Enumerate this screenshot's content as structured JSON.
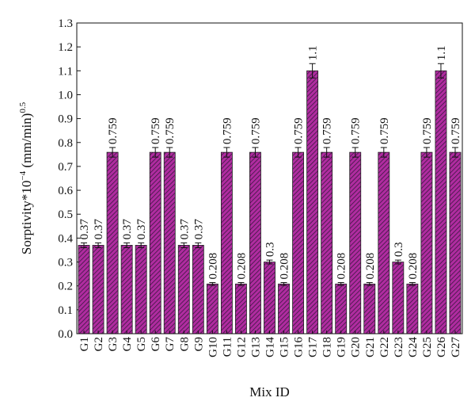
{
  "chart_data": {
    "type": "bar",
    "title": "",
    "xlabel": "Mix ID",
    "ylabel_main": "Sorptivity*10",
    "ylabel_exp1": "−4",
    "ylabel_mid": " (mm/min)",
    "ylabel_exp2": "0.5",
    "ylim": [
      0.0,
      1.3
    ],
    "ytick_step": 0.1,
    "ytick_labels": [
      "0.0",
      "0.1",
      "0.2",
      "0.3",
      "0.4",
      "0.5",
      "0.6",
      "0.7",
      "0.8",
      "0.9",
      "1.0",
      "1.1",
      "1.2",
      "1.3"
    ],
    "categories": [
      "G1",
      "G2",
      "G3",
      "G4",
      "G5",
      "G6",
      "G7",
      "G8",
      "G9",
      "G10",
      "G11",
      "G12",
      "G13",
      "G14",
      "G15",
      "G16",
      "G17",
      "G18",
      "G19",
      "G20",
      "G21",
      "G22",
      "G23",
      "G24",
      "G25",
      "G26",
      "G27"
    ],
    "values": [
      0.37,
      0.37,
      0.759,
      0.37,
      0.37,
      0.759,
      0.759,
      0.37,
      0.37,
      0.208,
      0.759,
      0.208,
      0.759,
      0.3,
      0.208,
      0.759,
      1.1,
      0.759,
      0.208,
      0.759,
      0.208,
      0.759,
      0.3,
      0.208,
      0.759,
      1.1,
      0.759
    ],
    "data_labels": [
      "0.37",
      "0.37",
      "0.759",
      "0.37",
      "0.37",
      "0.759",
      "0.759",
      "0.37",
      "0.37",
      "0.208",
      "0.759",
      "0.208",
      "0.759",
      "0.3",
      "0.208",
      "0.759",
      "1.1",
      "0.759",
      "0.208",
      "0.759",
      "0.208",
      "0.759",
      "0.3",
      "0.208",
      "0.759",
      "1.1",
      "0.759"
    ],
    "errors": [
      0.01,
      0.01,
      0.02,
      0.01,
      0.01,
      0.02,
      0.02,
      0.01,
      0.01,
      0.006,
      0.02,
      0.006,
      0.02,
      0.008,
      0.006,
      0.02,
      0.03,
      0.02,
      0.006,
      0.02,
      0.006,
      0.02,
      0.008,
      0.006,
      0.02,
      0.03,
      0.02
    ],
    "bar_color": "#b02ca0",
    "hatch_color": "#3a1840",
    "grid": false,
    "legend": "none"
  }
}
